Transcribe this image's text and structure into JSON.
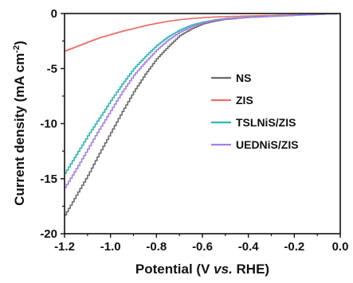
{
  "chart_data": {
    "type": "line",
    "xlabel": {
      "pre": "Potential (V ",
      "ital": "vs.",
      "post": " RHE)"
    },
    "ylabel": {
      "main": "Current density (mA cm",
      "sup": "-2",
      "close": ")"
    },
    "xlim": [
      -1.2,
      0.0
    ],
    "ylim": [
      -20,
      0
    ],
    "xticks": [
      "-1.2",
      "-1.0",
      "-0.8",
      "-0.6",
      "-0.4",
      "-0.2",
      "0.0"
    ],
    "yticks": [
      "0",
      "-5",
      "-10",
      "-15",
      "-20"
    ],
    "legend_position": "center-right",
    "series": [
      {
        "name": "NS",
        "color": "#6b6b6b",
        "x": [
          -1.2,
          -1.15,
          -1.1,
          -1.05,
          -1.0,
          -0.95,
          -0.9,
          -0.85,
          -0.8,
          -0.75,
          -0.7,
          -0.65,
          -0.6,
          -0.55,
          -0.5,
          -0.4,
          -0.3,
          -0.2,
          -0.1,
          0.0
        ],
        "y": [
          -18.3,
          -16.5,
          -14.7,
          -12.7,
          -10.8,
          -8.9,
          -7.1,
          -5.5,
          -4.1,
          -3.0,
          -2.0,
          -1.4,
          -0.95,
          -0.7,
          -0.52,
          -0.35,
          -0.25,
          -0.16,
          -0.08,
          0.0
        ]
      },
      {
        "name": "ZIS",
        "color": "#e8706a",
        "x": [
          -1.2,
          -1.15,
          -1.1,
          -1.05,
          -1.0,
          -0.95,
          -0.9,
          -0.85,
          -0.8,
          -0.75,
          -0.7,
          -0.65,
          -0.6,
          -0.55,
          -0.5,
          -0.4,
          -0.3,
          -0.2,
          -0.1,
          0.0
        ],
        "y": [
          -3.4,
          -3.0,
          -2.6,
          -2.2,
          -1.9,
          -1.6,
          -1.35,
          -1.1,
          -0.88,
          -0.7,
          -0.55,
          -0.45,
          -0.38,
          -0.32,
          -0.28,
          -0.22,
          -0.17,
          -0.12,
          -0.06,
          0.0
        ]
      },
      {
        "name": "TSLNiS/ZIS",
        "color": "#2ab9b0",
        "x": [
          -1.2,
          -1.15,
          -1.1,
          -1.05,
          -1.0,
          -0.95,
          -0.9,
          -0.85,
          -0.8,
          -0.75,
          -0.7,
          -0.65,
          -0.6,
          -0.55,
          -0.5,
          -0.4,
          -0.3,
          -0.2,
          -0.1,
          0.0
        ],
        "y": [
          -14.5,
          -12.8,
          -11.1,
          -9.5,
          -7.9,
          -6.4,
          -5.0,
          -3.9,
          -2.9,
          -2.1,
          -1.5,
          -1.05,
          -0.78,
          -0.58,
          -0.45,
          -0.32,
          -0.24,
          -0.15,
          -0.08,
          0.0
        ]
      },
      {
        "name": "UEDNiS/ZIS",
        "color": "#a77fe8",
        "x": [
          -1.2,
          -1.15,
          -1.1,
          -1.05,
          -1.0,
          -0.95,
          -0.9,
          -0.85,
          -0.8,
          -0.75,
          -0.7,
          -0.65,
          -0.6,
          -0.55,
          -0.5,
          -0.4,
          -0.3,
          -0.2,
          -0.1,
          0.0
        ],
        "y": [
          -15.8,
          -14.1,
          -12.3,
          -10.5,
          -8.8,
          -7.1,
          -5.6,
          -4.4,
          -3.3,
          -2.4,
          -1.7,
          -1.2,
          -0.85,
          -0.62,
          -0.48,
          -0.34,
          -0.25,
          -0.16,
          -0.08,
          0.0
        ]
      }
    ]
  }
}
